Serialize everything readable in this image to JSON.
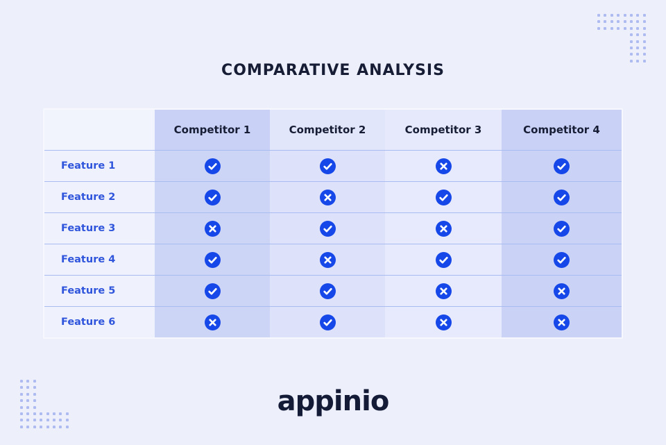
{
  "page": {
    "title": "COMPARATIVE ANALYSIS",
    "brand_logo_text": "appinio"
  },
  "table": {
    "corner_label": "",
    "col_headers": [
      "Competitor 1",
      "Competitor 2",
      "Competitor 3",
      "Competitor 4"
    ],
    "rows": [
      {
        "label": "Feature 1",
        "values": [
          "check",
          "check",
          "cross",
          "check"
        ]
      },
      {
        "label": "Feature 2",
        "values": [
          "check",
          "cross",
          "check",
          "check"
        ]
      },
      {
        "label": "Feature 3",
        "values": [
          "cross",
          "check",
          "cross",
          "check"
        ]
      },
      {
        "label": "Feature 4",
        "values": [
          "check",
          "cross",
          "check",
          "check"
        ]
      },
      {
        "label": "Feature 5",
        "values": [
          "check",
          "check",
          "cross",
          "cross"
        ]
      },
      {
        "label": "Feature 6",
        "values": [
          "cross",
          "check",
          "cross",
          "cross"
        ]
      }
    ]
  },
  "icons": {
    "check": "check-icon",
    "cross": "cross-icon"
  },
  "colors": {
    "page_bg": "#EDEFFB",
    "heading_text": "#161D35",
    "feature_text": "#2F55DC",
    "logo_text": "#141B37",
    "icon_blue": "#1647E8",
    "separator": "#A9BCF1",
    "table_border": "#F6F8FE",
    "header_col0": "#F1F3FD",
    "header_col1": "#C9D2F6",
    "header_col2": "#E2E6FA",
    "header_col3": "#E6E9FC",
    "header_col4": "#C9D2F6",
    "body_col0": "#EFF1FC",
    "body_col1": "#CDD5F7",
    "body_col2": "#DDE2FA",
    "body_col3": "#E7EAFC",
    "body_col4": "#CAD3F6",
    "dots": "#AEBBF1"
  },
  "chart_data": {
    "type": "table",
    "title": "COMPARATIVE ANALYSIS",
    "columns": [
      "",
      "Competitor 1",
      "Competitor 2",
      "Competitor 3",
      "Competitor 4"
    ],
    "rows": [
      [
        "Feature 1",
        "yes",
        "yes",
        "no",
        "yes"
      ],
      [
        "Feature 2",
        "yes",
        "no",
        "yes",
        "yes"
      ],
      [
        "Feature 3",
        "no",
        "yes",
        "no",
        "yes"
      ],
      [
        "Feature 4",
        "yes",
        "no",
        "yes",
        "yes"
      ],
      [
        "Feature 5",
        "yes",
        "yes",
        "no",
        "no"
      ],
      [
        "Feature 6",
        "no",
        "yes",
        "no",
        "no"
      ]
    ],
    "legend": {
      "check_means": "feature available",
      "cross_means": "feature not available"
    }
  }
}
